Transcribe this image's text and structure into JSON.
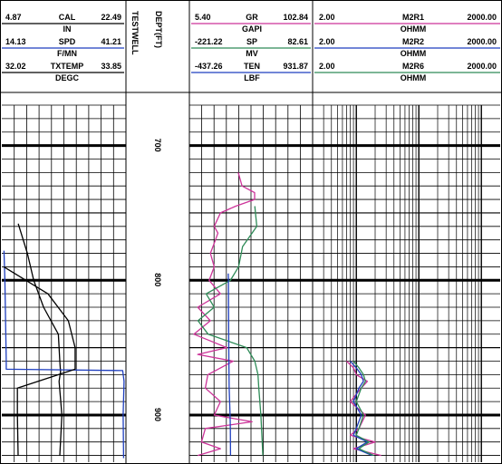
{
  "track1": {
    "rows": [
      {
        "left": "4.87",
        "name": "CAL",
        "right": "22.49",
        "unit": "IN",
        "color": "#000000"
      },
      {
        "left": "14.13",
        "name": "SPD",
        "right": "41.21",
        "unit": "F/MN",
        "color": "#1f3fbf"
      },
      {
        "left": "32.02",
        "name": "TXTEMP",
        "right": "33.85",
        "unit": "DEGC",
        "color": "#000000"
      }
    ]
  },
  "depth_track": {
    "well_name": "TESTWELL",
    "depth_header": "DEPT(FT)"
  },
  "track2": {
    "rows": [
      {
        "left": "5.40",
        "name": "GR",
        "right": "102.84",
        "unit": "GAPI",
        "color": "#cc3399"
      },
      {
        "left": "-221.22",
        "name": "SP",
        "right": "82.61",
        "unit": "MV",
        "color": "#2e8b57"
      },
      {
        "left": "-437.26",
        "name": "TEN",
        "right": "931.87",
        "unit": "LBF",
        "color": "#1f3fbf"
      }
    ]
  },
  "track3": {
    "rows": [
      {
        "left": "2.00",
        "name": "M2R1",
        "right": "2000.00",
        "unit": "OHMM",
        "color": "#cc3399"
      },
      {
        "left": "2.00",
        "name": "M2R2",
        "right": "2000.00",
        "unit": "OHMM",
        "color": "#1f3fbf"
      },
      {
        "left": "2.00",
        "name": "M2R6",
        "right": "2000.00",
        "unit": "OHMM",
        "color": "#2e8b57"
      }
    ]
  },
  "chart_data": {
    "type": "line",
    "depth_unit": "FT",
    "depth_range": [
      670,
      935
    ],
    "depth_ticks": [
      700,
      800,
      900
    ],
    "tracks": [
      {
        "name": "track1",
        "scale": "linear",
        "series": [
          {
            "name": "CAL",
            "min": 4.87,
            "max": 22.49,
            "points": [
              [
                758,
                7.2
              ],
              [
                780,
                8.5
              ],
              [
                800,
                9.4
              ],
              [
                820,
                10.8
              ],
              [
                840,
                12.9
              ],
              [
                860,
                13.1
              ],
              [
                868,
                13.2
              ],
              [
                875,
                13.0
              ],
              [
                900,
                13.4
              ],
              [
                930,
                13.1
              ]
            ]
          },
          {
            "name": "SPD",
            "min": 14.13,
            "max": 41.21,
            "points": [
              [
                778,
                14.6
              ],
              [
                800,
                14.8
              ],
              [
                840,
                15.0
              ],
              [
                860,
                15.1
              ],
              [
                866,
                15.1
              ],
              [
                867,
                40.5
              ],
              [
                875,
                40.8
              ],
              [
                900,
                40.6
              ],
              [
                932,
                40.7
              ]
            ]
          },
          {
            "name": "TXTEMP",
            "min": 32.02,
            "max": 33.85,
            "points": [
              [
                790,
                32.05
              ],
              [
                810,
                32.7
              ],
              [
                830,
                33.0
              ],
              [
                850,
                33.1
              ],
              [
                866,
                33.1
              ],
              [
                880,
                32.25
              ],
              [
                900,
                32.25
              ],
              [
                930,
                32.26
              ]
            ]
          }
        ]
      },
      {
        "name": "track2",
        "scale": "linear",
        "series": [
          {
            "name": "GR",
            "min": 5.4,
            "max": 102.84,
            "points": [
              [
                720,
                44
              ],
              [
                730,
                47
              ],
              [
                735,
                57
              ],
              [
                740,
                57
              ],
              [
                745,
                42
              ],
              [
                750,
                30
              ],
              [
                760,
                25
              ],
              [
                765,
                28
              ],
              [
                770,
                26
              ],
              [
                780,
                22
              ],
              [
                790,
                25
              ],
              [
                800,
                21
              ],
              [
                810,
                30
              ],
              [
                820,
                12
              ],
              [
                830,
                22
              ],
              [
                840,
                9
              ],
              [
                845,
                22
              ],
              [
                850,
                35
              ],
              [
                855,
                12
              ],
              [
                860,
                40
              ],
              [
                870,
                20
              ],
              [
                880,
                18
              ],
              [
                890,
                30
              ],
              [
                900,
                25
              ],
              [
                905,
                55
              ],
              [
                910,
                18
              ],
              [
                920,
                15
              ],
              [
                925,
                30
              ],
              [
                930,
                12
              ]
            ]
          },
          {
            "name": "SP",
            "min": -221.22,
            "max": 82.61,
            "points": [
              [
                745,
                -60
              ],
              [
                760,
                -55
              ],
              [
                775,
                -90
              ],
              [
                790,
                -100
              ],
              [
                800,
                -120
              ],
              [
                810,
                -180
              ],
              [
                820,
                -160
              ],
              [
                830,
                -200
              ],
              [
                840,
                -175
              ],
              [
                850,
                -80
              ],
              [
                860,
                -60
              ],
              [
                870,
                -52
              ],
              [
                880,
                -50
              ],
              [
                900,
                -45
              ],
              [
                930,
                -40
              ]
            ]
          },
          {
            "name": "TEN",
            "min": -437.26,
            "max": 931.87,
            "points": [
              [
                795,
                -5
              ],
              [
                800,
                -3
              ],
              [
                820,
                -2
              ],
              [
                840,
                0
              ],
              [
                860,
                2
              ],
              [
                880,
                5
              ],
              [
                900,
                15
              ],
              [
                910,
                18
              ],
              [
                930,
                20
              ]
            ]
          }
        ]
      },
      {
        "name": "track3",
        "scale": "log",
        "series": [
          {
            "name": "M2R1",
            "min": 2.0,
            "max": 2000.0,
            "points": [
              [
                860,
                7
              ],
              [
                865,
                9
              ],
              [
                870,
                10
              ],
              [
                875,
                15
              ],
              [
                880,
                12
              ],
              [
                890,
                8
              ],
              [
                900,
                14
              ],
              [
                910,
                11
              ],
              [
                915,
                8
              ],
              [
                920,
                20
              ],
              [
                925,
                9
              ],
              [
                930,
                25
              ]
            ]
          },
          {
            "name": "M2R2",
            "min": 2.0,
            "max": 2000.0,
            "points": [
              [
                860,
                8
              ],
              [
                865,
                10
              ],
              [
                870,
                12
              ],
              [
                875,
                13
              ],
              [
                880,
                11
              ],
              [
                890,
                9
              ],
              [
                900,
                12
              ],
              [
                910,
                10
              ],
              [
                915,
                9
              ],
              [
                920,
                15
              ],
              [
                925,
                10
              ],
              [
                930,
                18
              ]
            ]
          },
          {
            "name": "M2R6",
            "min": 2.0,
            "max": 2000.0,
            "points": [
              [
                860,
                9
              ],
              [
                865,
                11
              ],
              [
                870,
                13
              ],
              [
                875,
                14
              ],
              [
                880,
                12
              ],
              [
                890,
                10
              ],
              [
                900,
                13
              ],
              [
                910,
                11
              ],
              [
                915,
                10
              ],
              [
                920,
                16
              ],
              [
                925,
                11
              ],
              [
                930,
                19
              ]
            ]
          }
        ]
      }
    ]
  }
}
